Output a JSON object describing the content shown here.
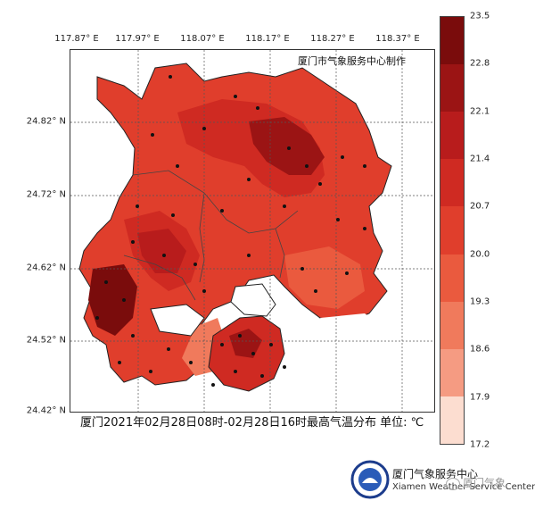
{
  "map": {
    "credit": "厦门市气象服务中心制作",
    "caption": "厦门2021年02月28日08时-02月28日16时最高气温分布  单位: ℃",
    "lon_ticks": [
      "117.87° E",
      "117.97° E",
      "118.07° E",
      "118.17° E",
      "118.27° E",
      "118.37° E"
    ],
    "lat_ticks": [
      "24.82° N",
      "24.72° N",
      "24.62° N",
      "24.52° N",
      "24.42° N"
    ],
    "colorbar": {
      "labels": [
        "23.5",
        "22.8",
        "22.1",
        "21.4",
        "20.7",
        "20.0",
        "19.3",
        "18.6",
        "17.9",
        "17.2"
      ],
      "colors": [
        "#7a0c0c",
        "#9b1414",
        "#b81c1c",
        "#cf2a22",
        "#e03e2c",
        "#ea5a3e",
        "#f07a5c",
        "#f59b82",
        "#f9bda8",
        "#fcddd0"
      ]
    }
  },
  "watermark": {
    "org_cn": "厦门气象服务中心",
    "org_en": "Xiamen Weather Service Center",
    "account": "厦门气象"
  }
}
